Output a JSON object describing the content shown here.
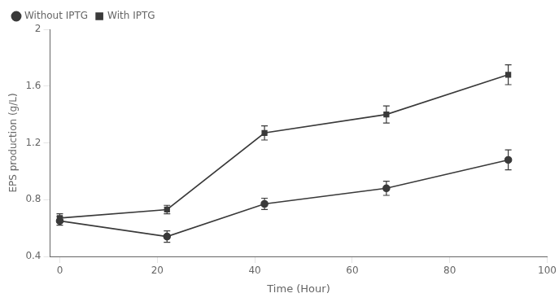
{
  "chart_data": {
    "type": "line",
    "title": "",
    "xlabel": "Time (Hour)",
    "ylabel": "EPS production (g/L)",
    "x": [
      0,
      22,
      42,
      67,
      92
    ],
    "series": [
      {
        "name": "Without IPTG",
        "color": "#3a3a3a",
        "marker": "circle",
        "line_style": "solid",
        "values": [
          0.65,
          0.54,
          0.77,
          0.88,
          1.08
        ],
        "errors": [
          0.03,
          0.04,
          0.04,
          0.05,
          0.07
        ]
      },
      {
        "name": "With IPTG",
        "color": "#3a3a3a",
        "marker": "square",
        "line_style": "solid",
        "values": [
          0.67,
          0.73,
          1.27,
          1.4,
          1.68
        ],
        "errors": [
          0.03,
          0.03,
          0.05,
          0.06,
          0.07
        ]
      }
    ],
    "xlim": [
      -2,
      100
    ],
    "xticks": [
      0,
      20,
      40,
      60,
      80,
      100
    ],
    "ylim": [
      0.4,
      2.0
    ],
    "yticks": [
      0.4,
      0.8,
      1.2,
      1.6,
      2.0
    ],
    "grid": false,
    "legend": "upper left"
  }
}
